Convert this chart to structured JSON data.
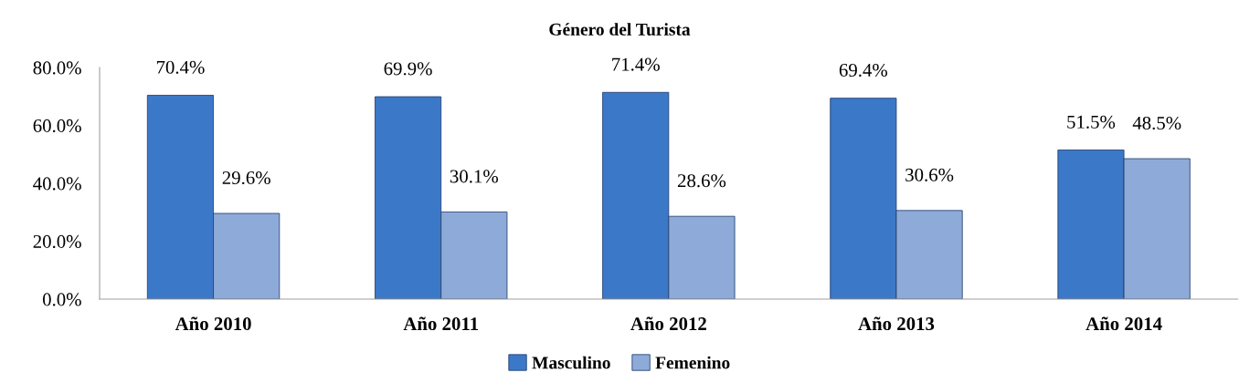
{
  "chart_data": {
    "type": "bar",
    "title": "Género del Turista",
    "categories": [
      "Año 2010",
      "Año 2011",
      "Año 2012",
      "Año 2013",
      "Año 2014"
    ],
    "series": [
      {
        "name": "Masculino",
        "color": "#3c78c8",
        "values": [
          70.4,
          69.9,
          71.4,
          69.4,
          51.5
        ],
        "value_labels": [
          "70.4%",
          "69.9%",
          "71.4%",
          "69.4%",
          "51.5%"
        ]
      },
      {
        "name": "Femenino",
        "color": "#8eaad8",
        "values": [
          29.6,
          30.1,
          28.6,
          30.6,
          48.5
        ],
        "value_labels": [
          "29.6%",
          "30.1%",
          "28.6%",
          "30.6%",
          "48.5%"
        ]
      }
    ],
    "ylim": [
      0,
      80
    ],
    "yticks": [
      {
        "value": 0,
        "label": "0.0%"
      },
      {
        "value": 20,
        "label": "20.0%"
      },
      {
        "value": 40,
        "label": "40.0%"
      },
      {
        "value": 60,
        "label": "60.0%"
      },
      {
        "value": 80,
        "label": "80.0%"
      }
    ],
    "grid": false,
    "legend": "bottom"
  }
}
